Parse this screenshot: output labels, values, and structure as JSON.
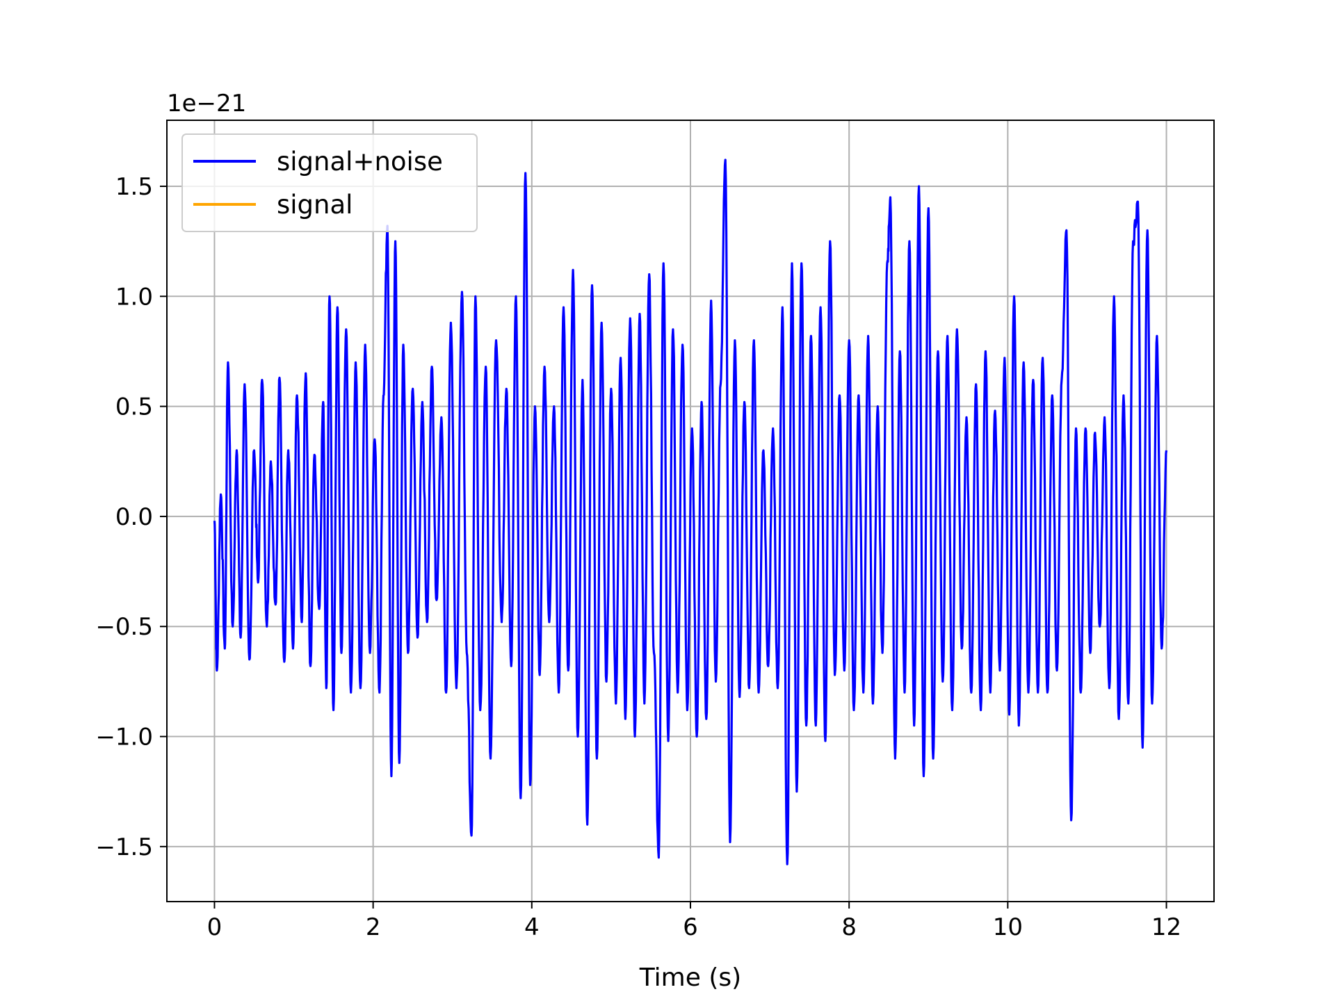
{
  "chart_data": {
    "type": "line",
    "xlabel": "Time (s)",
    "ylabel": "",
    "offset_label": "1e−21",
    "xlim": [
      -0.6,
      12.6
    ],
    "ylim": [
      -1.75,
      1.8
    ],
    "x_ticks": [
      0,
      2,
      4,
      6,
      8,
      10,
      12
    ],
    "x_tick_labels": [
      "0",
      "2",
      "4",
      "6",
      "8",
      "10",
      "12"
    ],
    "y_ticks": [
      -1.5,
      -1.0,
      -0.5,
      0.0,
      0.5,
      1.0,
      1.5
    ],
    "y_tick_labels": [
      "−1.5",
      "−1.0",
      "−0.5",
      "0.0",
      "0.5",
      "1.0",
      "1.5"
    ],
    "grid": true,
    "legend_position": "top-left",
    "series": [
      {
        "name": "signal+noise",
        "color": "#0000ff",
        "x_range": [
          0,
          12
        ],
        "peaks": [
          [
            0.0,
            -0.02
          ],
          [
            0.03,
            -0.7
          ],
          [
            0.08,
            0.1
          ],
          [
            0.13,
            -0.6
          ],
          [
            0.17,
            0.7
          ],
          [
            0.23,
            -0.5
          ],
          [
            0.28,
            0.3
          ],
          [
            0.33,
            -0.55
          ],
          [
            0.38,
            0.6
          ],
          [
            0.44,
            -0.65
          ],
          [
            0.5,
            0.3
          ],
          [
            0.55,
            -0.3
          ],
          [
            0.6,
            0.62
          ],
          [
            0.66,
            -0.5
          ],
          [
            0.71,
            0.25
          ],
          [
            0.77,
            -0.4
          ],
          [
            0.82,
            0.63
          ],
          [
            0.88,
            -0.66
          ],
          [
            0.93,
            0.3
          ],
          [
            0.99,
            -0.6
          ],
          [
            1.04,
            0.55
          ],
          [
            1.1,
            -0.48
          ],
          [
            1.15,
            0.65
          ],
          [
            1.21,
            -0.68
          ],
          [
            1.26,
            0.28
          ],
          [
            1.32,
            -0.42
          ],
          [
            1.37,
            0.52
          ],
          [
            1.41,
            -0.78
          ],
          [
            1.45,
            1.0
          ],
          [
            1.5,
            -0.88
          ],
          [
            1.55,
            0.95
          ],
          [
            1.6,
            -0.62
          ],
          [
            1.66,
            0.85
          ],
          [
            1.72,
            -0.8
          ],
          [
            1.78,
            0.7
          ],
          [
            1.84,
            -0.78
          ],
          [
            1.9,
            0.78
          ],
          [
            1.96,
            -0.62
          ],
          [
            2.02,
            0.35
          ],
          [
            2.08,
            -0.8
          ],
          [
            2.13,
            0.55
          ],
          [
            2.18,
            1.32
          ],
          [
            2.23,
            -1.18
          ],
          [
            2.28,
            1.25
          ],
          [
            2.33,
            -1.12
          ],
          [
            2.38,
            0.78
          ],
          [
            2.44,
            -0.62
          ],
          [
            2.5,
            0.58
          ],
          [
            2.56,
            -0.55
          ],
          [
            2.62,
            0.52
          ],
          [
            2.68,
            -0.48
          ],
          [
            2.74,
            0.68
          ],
          [
            2.8,
            -0.38
          ],
          [
            2.86,
            0.45
          ],
          [
            2.92,
            -0.8
          ],
          [
            2.98,
            0.88
          ],
          [
            3.05,
            -0.78
          ],
          [
            3.12,
            1.02
          ],
          [
            3.18,
            -0.62
          ],
          [
            3.24,
            -1.45
          ],
          [
            3.29,
            1.0
          ],
          [
            3.35,
            -0.88
          ],
          [
            3.42,
            0.68
          ],
          [
            3.48,
            -1.1
          ],
          [
            3.55,
            0.8
          ],
          [
            3.62,
            -0.48
          ],
          [
            3.68,
            0.58
          ],
          [
            3.74,
            -0.68
          ],
          [
            3.8,
            1.0
          ],
          [
            3.86,
            -1.28
          ],
          [
            3.92,
            1.56
          ],
          [
            3.98,
            -1.22
          ],
          [
            4.04,
            0.5
          ],
          [
            4.1,
            -0.72
          ],
          [
            4.16,
            0.68
          ],
          [
            4.22,
            -0.48
          ],
          [
            4.28,
            0.5
          ],
          [
            4.34,
            -0.8
          ],
          [
            4.4,
            0.95
          ],
          [
            4.46,
            -0.7
          ],
          [
            4.52,
            1.12
          ],
          [
            4.58,
            -1.0
          ],
          [
            4.64,
            0.62
          ],
          [
            4.7,
            -1.4
          ],
          [
            4.76,
            1.05
          ],
          [
            4.82,
            -1.1
          ],
          [
            4.88,
            0.88
          ],
          [
            4.94,
            -0.75
          ],
          [
            5.0,
            0.58
          ],
          [
            5.06,
            -0.85
          ],
          [
            5.12,
            0.72
          ],
          [
            5.18,
            -0.92
          ],
          [
            5.24,
            0.9
          ],
          [
            5.3,
            -1.0
          ],
          [
            5.36,
            0.92
          ],
          [
            5.42,
            -0.85
          ],
          [
            5.48,
            1.1
          ],
          [
            5.54,
            -0.62
          ],
          [
            5.6,
            -1.55
          ],
          [
            5.66,
            1.15
          ],
          [
            5.72,
            -1.02
          ],
          [
            5.78,
            0.85
          ],
          [
            5.84,
            -0.8
          ],
          [
            5.9,
            0.78
          ],
          [
            5.96,
            -0.88
          ],
          [
            6.02,
            0.4
          ],
          [
            6.08,
            -1.0
          ],
          [
            6.14,
            0.52
          ],
          [
            6.2,
            -0.92
          ],
          [
            6.26,
            0.98
          ],
          [
            6.32,
            -0.75
          ],
          [
            6.38,
            0.6
          ],
          [
            6.44,
            1.62
          ],
          [
            6.5,
            -1.48
          ],
          [
            6.56,
            0.8
          ],
          [
            6.62,
            -0.82
          ],
          [
            6.68,
            0.52
          ],
          [
            6.74,
            -0.78
          ],
          [
            6.8,
            0.8
          ],
          [
            6.86,
            -0.8
          ],
          [
            6.92,
            0.3
          ],
          [
            6.98,
            -0.68
          ],
          [
            7.04,
            0.4
          ],
          [
            7.1,
            -0.78
          ],
          [
            7.16,
            0.95
          ],
          [
            7.22,
            -1.58
          ],
          [
            7.28,
            1.15
          ],
          [
            7.34,
            -1.25
          ],
          [
            7.4,
            1.15
          ],
          [
            7.46,
            -0.95
          ],
          [
            7.52,
            0.82
          ],
          [
            7.58,
            -0.95
          ],
          [
            7.64,
            0.95
          ],
          [
            7.7,
            -1.02
          ],
          [
            7.76,
            1.25
          ],
          [
            7.82,
            -0.72
          ],
          [
            7.88,
            0.55
          ],
          [
            7.94,
            -0.7
          ],
          [
            8.0,
            0.8
          ],
          [
            8.06,
            -0.88
          ],
          [
            8.12,
            0.55
          ],
          [
            8.18,
            -0.8
          ],
          [
            8.24,
            0.82
          ],
          [
            8.3,
            -0.85
          ],
          [
            8.36,
            0.5
          ],
          [
            8.42,
            -0.62
          ],
          [
            8.48,
            1.15
          ],
          [
            8.52,
            1.45
          ],
          [
            8.58,
            -1.1
          ],
          [
            8.64,
            0.75
          ],
          [
            8.7,
            -0.8
          ],
          [
            8.76,
            1.25
          ],
          [
            8.82,
            -0.95
          ],
          [
            8.88,
            1.5
          ],
          [
            8.94,
            -1.18
          ],
          [
            9.0,
            1.4
          ],
          [
            9.06,
            -1.1
          ],
          [
            9.12,
            0.75
          ],
          [
            9.18,
            -0.75
          ],
          [
            9.24,
            0.82
          ],
          [
            9.3,
            -0.88
          ],
          [
            9.36,
            0.85
          ],
          [
            9.42,
            -0.6
          ],
          [
            9.48,
            0.45
          ],
          [
            9.54,
            -0.8
          ],
          [
            9.6,
            0.6
          ],
          [
            9.66,
            -0.88
          ],
          [
            9.72,
            0.75
          ],
          [
            9.78,
            -0.8
          ],
          [
            9.84,
            0.48
          ],
          [
            9.9,
            -0.7
          ],
          [
            9.96,
            0.72
          ],
          [
            10.02,
            -0.9
          ],
          [
            10.08,
            1.0
          ],
          [
            10.14,
            -0.95
          ],
          [
            10.2,
            0.7
          ],
          [
            10.26,
            -0.8
          ],
          [
            10.32,
            0.62
          ],
          [
            10.38,
            -0.8
          ],
          [
            10.44,
            0.72
          ],
          [
            10.5,
            -0.8
          ],
          [
            10.56,
            0.55
          ],
          [
            10.62,
            -0.7
          ],
          [
            10.68,
            0.62
          ],
          [
            10.74,
            1.3
          ],
          [
            10.8,
            -1.38
          ],
          [
            10.86,
            0.4
          ],
          [
            10.92,
            -0.8
          ],
          [
            10.98,
            0.4
          ],
          [
            11.04,
            -0.62
          ],
          [
            11.1,
            0.38
          ],
          [
            11.16,
            -0.5
          ],
          [
            11.22,
            0.45
          ],
          [
            11.28,
            -0.78
          ],
          [
            11.34,
            1.0
          ],
          [
            11.4,
            -0.92
          ],
          [
            11.46,
            0.55
          ],
          [
            11.52,
            -0.85
          ],
          [
            11.58,
            1.25
          ],
          [
            11.64,
            1.43
          ],
          [
            11.7,
            -1.05
          ],
          [
            11.76,
            1.3
          ],
          [
            11.82,
            -0.85
          ],
          [
            11.88,
            0.82
          ],
          [
            11.94,
            -0.6
          ],
          [
            12.0,
            0.3
          ]
        ]
      },
      {
        "name": "signal",
        "color": "#ffa500",
        "values": []
      }
    ]
  }
}
